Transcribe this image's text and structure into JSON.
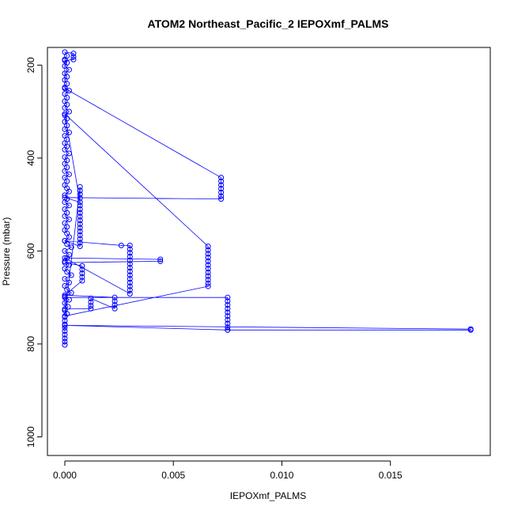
{
  "chart_data": {
    "type": "scatter",
    "title": "ATOM2 Northeast_Pacific_2 IEPOXmf_PALMS",
    "xlabel": "IEPOXmf_PALMS",
    "ylabel": "Pressure (mbar)",
    "xlim": [
      -0.0008,
      0.0196
    ],
    "ylim": [
      1040,
      162
    ],
    "y_reversed": true,
    "x_ticks": [
      0.0,
      0.005,
      0.01,
      0.015
    ],
    "x_tick_labels": [
      "0.000",
      "0.005",
      "0.010",
      "0.015"
    ],
    "y_ticks": [
      200,
      400,
      600,
      800,
      1000
    ],
    "y_tick_labels": [
      "200",
      "400",
      "600",
      "800",
      "1000"
    ],
    "grid": false,
    "line_color": "#0000ff",
    "marker": "open-circle",
    "series": [
      {
        "points": [
          [
            0,
            802
          ],
          [
            0,
            795
          ],
          [
            0,
            788
          ],
          [
            0,
            780
          ],
          [
            0,
            772
          ],
          [
            0,
            765
          ],
          [
            0,
            758
          ],
          [
            0,
            750
          ],
          [
            0,
            742
          ],
          [
            0.0001,
            735
          ],
          [
            0,
            728
          ],
          [
            0.00015,
            720
          ],
          [
            0,
            712
          ],
          [
            0.0002,
            705
          ],
          [
            0,
            698
          ],
          [
            0.0003,
            690
          ],
          [
            0.0001,
            683
          ],
          [
            0,
            675
          ],
          [
            0.0002,
            668
          ],
          [
            0,
            660
          ],
          [
            0.0003,
            652
          ],
          [
            0.0001,
            645
          ],
          [
            0,
            638
          ],
          [
            0.0002,
            630
          ],
          [
            0,
            622
          ],
          [
            0.0001,
            615
          ],
          [
            0.0002,
            608
          ],
          [
            0,
            600
          ],
          [
            0.0003,
            592
          ],
          [
            0.0001,
            585
          ],
          [
            0,
            578
          ],
          [
            0.0002,
            570
          ],
          [
            0.0001,
            562
          ],
          [
            0,
            555
          ],
          [
            0.0001,
            548
          ],
          [
            0,
            540
          ],
          [
            0.0002,
            532
          ],
          [
            0,
            525
          ],
          [
            0.0001,
            518
          ],
          [
            0,
            510
          ],
          [
            0.0002,
            502
          ],
          [
            0,
            495
          ],
          [
            0.0001,
            488
          ],
          [
            0,
            480
          ],
          [
            0.0002,
            472
          ],
          [
            0.0001,
            465
          ],
          [
            0,
            458
          ],
          [
            0.0001,
            450
          ],
          [
            0,
            442
          ],
          [
            0.0002,
            435
          ],
          [
            0,
            428
          ],
          [
            0.0001,
            420
          ],
          [
            0,
            412
          ],
          [
            0.0001,
            405
          ],
          [
            0,
            398
          ],
          [
            0.0002,
            390
          ],
          [
            0,
            382
          ],
          [
            0.0001,
            375
          ],
          [
            0,
            368
          ],
          [
            0.0001,
            360
          ],
          [
            0,
            352
          ],
          [
            0.0002,
            345
          ],
          [
            0,
            338
          ],
          [
            0.0001,
            330
          ],
          [
            0,
            322
          ],
          [
            0.0001,
            315
          ],
          [
            0,
            308
          ],
          [
            0.0002,
            300
          ],
          [
            0,
            292
          ],
          [
            0.0001,
            285
          ],
          [
            0,
            278
          ],
          [
            0.0001,
            270
          ],
          [
            0,
            262
          ],
          [
            0.0002,
            255
          ],
          [
            0,
            248
          ],
          [
            0.0001,
            240
          ],
          [
            0,
            232
          ],
          [
            0.0001,
            225
          ],
          [
            0,
            218
          ],
          [
            0.0002,
            210
          ],
          [
            0,
            202
          ],
          [
            0.0001,
            195
          ],
          [
            0,
            188
          ],
          [
            0.0001,
            180
          ],
          [
            0,
            172
          ],
          [
            0.0004,
            175
          ],
          [
            0.0004,
            182
          ],
          [
            0.0004,
            188
          ],
          [
            0,
            190
          ],
          [
            0,
            250
          ],
          [
            0.0072,
            442
          ],
          [
            0.0072,
            450
          ],
          [
            0.0072,
            458
          ],
          [
            0.0072,
            466
          ],
          [
            0.0072,
            474
          ],
          [
            0.0072,
            482
          ],
          [
            0.0072,
            488
          ],
          [
            0,
            485
          ],
          [
            0.0007,
            495
          ],
          [
            0,
            305
          ],
          [
            0.0066,
            590
          ],
          [
            0.0066,
            598
          ],
          [
            0.0066,
            606
          ],
          [
            0.0066,
            614
          ],
          [
            0.0066,
            622
          ],
          [
            0.0066,
            630
          ],
          [
            0.0066,
            638
          ],
          [
            0.0066,
            646
          ],
          [
            0.0066,
            654
          ],
          [
            0.0066,
            662
          ],
          [
            0.0066,
            670
          ],
          [
            0.0066,
            676
          ],
          [
            0,
            740
          ],
          [
            0.0007,
            462
          ],
          [
            0.0007,
            470
          ],
          [
            0.0007,
            478
          ],
          [
            0.0007,
            486
          ],
          [
            0.0007,
            502
          ],
          [
            0.0007,
            510
          ],
          [
            0.0007,
            518
          ],
          [
            0.0007,
            526
          ],
          [
            0.0007,
            534
          ],
          [
            0.0007,
            542
          ],
          [
            0.0007,
            550
          ],
          [
            0.0007,
            558
          ],
          [
            0.0007,
            566
          ],
          [
            0.0007,
            574
          ],
          [
            0.0007,
            582
          ],
          [
            0.0007,
            590
          ],
          [
            0,
            578
          ],
          [
            0.0026,
            588
          ],
          [
            0.003,
            588
          ],
          [
            0.003,
            596
          ],
          [
            0.003,
            604
          ],
          [
            0.003,
            612
          ],
          [
            0.003,
            620
          ],
          [
            0.003,
            628
          ],
          [
            0.003,
            636
          ],
          [
            0.003,
            644
          ],
          [
            0.003,
            652
          ],
          [
            0.003,
            660
          ],
          [
            0.003,
            668
          ],
          [
            0.003,
            676
          ],
          [
            0.003,
            684
          ],
          [
            0.003,
            692
          ],
          [
            0,
            615
          ],
          [
            0.0044,
            618
          ],
          [
            0.0044,
            622
          ],
          [
            0,
            625
          ],
          [
            0.0008,
            632
          ],
          [
            0.0008,
            640
          ],
          [
            0.0008,
            648
          ],
          [
            0.0008,
            656
          ],
          [
            0.0008,
            664
          ],
          [
            0,
            695
          ],
          [
            0.0023,
            700
          ],
          [
            0.0023,
            708
          ],
          [
            0.0023,
            716
          ],
          [
            0.0023,
            724
          ],
          [
            0.0012,
            702
          ],
          [
            0.0012,
            710
          ],
          [
            0.0012,
            718
          ],
          [
            0.0012,
            724
          ],
          [
            0,
            725
          ],
          [
            0,
            700
          ],
          [
            0.0075,
            700
          ],
          [
            0.0075,
            708
          ],
          [
            0.0075,
            716
          ],
          [
            0.0075,
            724
          ],
          [
            0.0075,
            732
          ],
          [
            0.0075,
            740
          ],
          [
            0.0075,
            748
          ],
          [
            0.0075,
            756
          ],
          [
            0.0075,
            764
          ],
          [
            0.0075,
            770
          ],
          [
            0,
            760
          ],
          [
            0.0187,
            768
          ],
          [
            0.0187,
            770
          ],
          [
            0.0075,
            770
          ]
        ]
      }
    ]
  }
}
